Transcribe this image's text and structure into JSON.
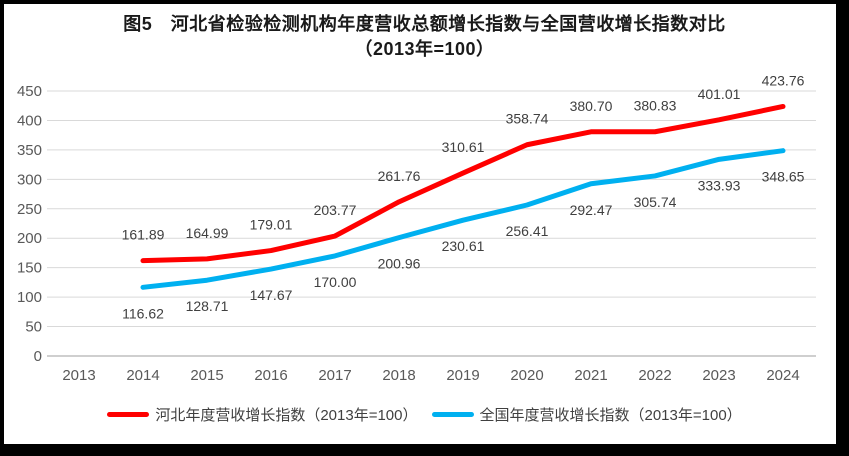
{
  "figure": {
    "title_line1": "图5　河北省检验检测机构年度营收总额增长指数与全国营收增长指数对比",
    "title_line2": "（2013年=100）"
  },
  "chart_data": {
    "type": "line",
    "title": "图5　河北省检验检测机构年度营收总额增长指数与全国营收增长指数对比",
    "subtitle": "（2013年=100）",
    "categories": [
      "2013",
      "2014",
      "2015",
      "2016",
      "2017",
      "2018",
      "2019",
      "2020",
      "2021",
      "2022",
      "2023",
      "2024"
    ],
    "series": [
      {
        "name": "河北年度营收增长指数（2013年=100）",
        "color": "#FF0000",
        "years": [
          "2014",
          "2015",
          "2016",
          "2017",
          "2018",
          "2019",
          "2020",
          "2021",
          "2022",
          "2023",
          "2024"
        ],
        "values": [
          161.89,
          164.99,
          179.01,
          203.77,
          261.76,
          310.61,
          358.74,
          380.7,
          380.83,
          401.01,
          423.76
        ],
        "label_position": "above"
      },
      {
        "name": "全国年度营收增长指数（2013年=100）",
        "color": "#00B0F0",
        "years": [
          "2014",
          "2015",
          "2016",
          "2017",
          "2018",
          "2019",
          "2020",
          "2021",
          "2022",
          "2023",
          "2024"
        ],
        "values": [
          116.62,
          128.71,
          147.67,
          170.0,
          200.96,
          230.61,
          256.41,
          292.47,
          305.74,
          333.93,
          348.65
        ],
        "label_position": "below"
      }
    ],
    "ylim": [
      0,
      450
    ],
    "ytick_step": 50,
    "grid": true,
    "legend_position": "bottom",
    "grid_color": "#D9D9D9",
    "axis_line_color": "#BFBFBF",
    "axis_label_color": "#595959",
    "data_label_color": "#404040"
  }
}
